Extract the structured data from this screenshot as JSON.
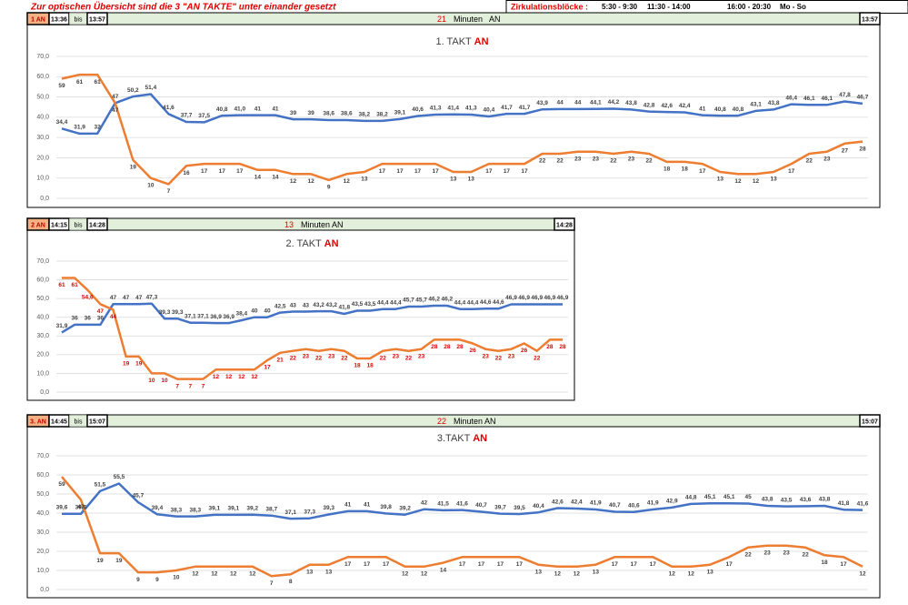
{
  "header": {
    "note": "Zur optischen Übersicht sind die 3 \"AN TAKTE\" unter einander gesetzt",
    "blocks_label": "Zirkulationsblöcke :",
    "blocks": [
      "5:30 - 9:30",
      "11:30 - 14:00",
      "16:00 - 20:30"
    ],
    "days": "Mo - So"
  },
  "chart_data": [
    {
      "type": "line",
      "title": "1. TAKT",
      "title_highlight": "AN",
      "block": {
        "label": "1 AN",
        "start": "13:36",
        "sep": "bis",
        "end": "13:57",
        "minutes": 21,
        "unit": "Minuten   AN",
        "right": "13:57"
      },
      "ylim": [
        0,
        70
      ],
      "yticks": [
        {
          "value": 0,
          "label": "0,0"
        },
        {
          "value": 10,
          "label": "10,0"
        },
        {
          "value": 20,
          "label": "20,0"
        },
        {
          "value": 30,
          "label": "30,0"
        },
        {
          "value": 40,
          "label": "40,0"
        },
        {
          "value": 50,
          "label": "50,0"
        },
        {
          "value": 60,
          "label": "60,0"
        },
        {
          "value": 70,
          "label": "70,0"
        }
      ],
      "grid": true,
      "series": [
        {
          "color": "#4472c4",
          "label_color": "#404040",
          "values": [
            34.4,
            31.9,
            32,
            47,
            50.2,
            51.4,
            41.6,
            37.7,
            37.5,
            40.8,
            41.0,
            41,
            41,
            39,
            39,
            38.6,
            38.6,
            38.2,
            38.2,
            39.1,
            40.6,
            41.3,
            41.4,
            41.3,
            40.4,
            41.7,
            41.7,
            43.9,
            44,
            44,
            44.1,
            44.2,
            43.8,
            42.8,
            42.6,
            42.4,
            41,
            40.8,
            40.8,
            43.1,
            43.8,
            46.4,
            46.1,
            46.1,
            47.8,
            46.7
          ],
          "value_labels": [
            "34,4",
            "31,9",
            "32",
            "47",
            "50,2",
            "51,4",
            "41,6",
            "37,7",
            "37,5",
            "40,8",
            "41,0",
            "41",
            "41",
            "39",
            "39",
            "38,6",
            "38,6",
            "38,2",
            "38,2",
            "39,1",
            "40,6",
            "41,3",
            "41,4",
            "41,3",
            "40,4",
            "41,7",
            "41,7",
            "43,9",
            "44",
            "44",
            "44,1",
            "44,2",
            "43,8",
            "42,8",
            "42,6",
            "42,4",
            "41",
            "40,8",
            "40,8",
            "43,1",
            "43,8",
            "46,4",
            "46,1",
            "46,1",
            "47,8",
            "46,7"
          ]
        },
        {
          "color": "#ed7d31",
          "label_color": "#404040",
          "values": [
            59,
            61,
            61,
            47,
            19,
            10,
            7,
            16,
            17,
            17,
            17,
            14,
            14,
            12,
            12,
            9,
            12,
            13,
            17,
            17,
            17,
            17,
            13,
            13,
            17,
            17,
            17,
            22,
            22,
            23,
            23,
            22,
            23,
            22,
            18,
            18,
            17,
            13,
            12,
            12,
            13,
            17,
            22,
            23,
            27,
            28
          ]
        }
      ]
    },
    {
      "type": "line",
      "title": "2. TAKT",
      "title_highlight": "AN",
      "block": {
        "label": "2 AN",
        "start": "14:15",
        "sep": "bis",
        "end": "14:28",
        "minutes": 13,
        "unit": "Minuten AN",
        "right": "14:28"
      },
      "ylim": [
        0,
        70
      ],
      "yticks": [
        {
          "value": 0,
          "label": "0,0"
        },
        {
          "value": 10,
          "label": "10,0"
        },
        {
          "value": 20,
          "label": "20,0"
        },
        {
          "value": 30,
          "label": "30,0"
        },
        {
          "value": 40,
          "label": "40,0"
        },
        {
          "value": 50,
          "label": "50,0"
        },
        {
          "value": 60,
          "label": "60,0"
        },
        {
          "value": 70,
          "label": "70,0"
        }
      ],
      "grid": true,
      "series": [
        {
          "color": "#4472c4",
          "label_color": "#404040",
          "values": [
            31.9,
            36,
            36,
            36,
            47,
            47,
            47,
            47.3,
            39.3,
            39.3,
            37.1,
            37.1,
            36.9,
            36.9,
            38.4,
            40,
            40,
            42.5,
            43,
            43,
            43.2,
            43.2,
            41.8,
            43.5,
            43.5,
            44.4,
            44.4,
            45.7,
            45.7,
            46.2,
            46.2,
            44.4,
            44.4,
            44.6,
            44.6,
            46.9,
            46.9,
            46.9,
            46.9,
            46.9
          ],
          "value_labels": [
            "31,9",
            "36",
            "36",
            "36",
            "47",
            "47",
            "47",
            "47,3",
            "39,3",
            "39,3",
            "37,1",
            "37,1",
            "36,9",
            "36,9",
            "38,4",
            "40",
            "40",
            "42,5",
            "43",
            "43",
            "43,2",
            "43,2",
            "41,8",
            "43,5",
            "43,5",
            "44,4",
            "44,4",
            "45,7",
            "45,7",
            "46,2",
            "46,2",
            "44,4",
            "44,4",
            "44,6",
            "44,6",
            "46,9",
            "46,9",
            "46,9",
            "46,9",
            "46,9"
          ]
        },
        {
          "color": "#ed7d31",
          "label_color": "#e00000",
          "values": [
            61,
            61,
            54.6,
            47,
            44,
            19,
            19,
            10,
            10,
            7,
            7,
            7,
            12,
            12,
            12,
            12,
            17,
            21,
            22,
            23,
            22,
            23,
            22,
            18,
            18,
            22,
            23,
            22,
            23,
            28,
            28,
            28,
            26,
            23,
            22,
            23,
            26,
            22,
            28,
            28
          ],
          "value_labels": [
            "61",
            "61",
            "54,6",
            "47",
            "44",
            "19",
            "19",
            "10",
            "10",
            "7",
            "7",
            "7",
            "12",
            "12",
            "12",
            "12",
            "17",
            "21",
            "22",
            "23",
            "22",
            "23",
            "22",
            "18",
            "18",
            "22",
            "23",
            "22",
            "23",
            "28",
            "28",
            "28",
            "26",
            "23",
            "22",
            "23",
            "26",
            "22",
            "28",
            "28"
          ]
        }
      ]
    },
    {
      "type": "line",
      "title": "3.TAKT",
      "title_highlight": "AN",
      "block": {
        "label": "3. AN",
        "start": "14:45",
        "sep": "bis",
        "end": "15:07",
        "minutes": 22,
        "unit": "Minuten AN",
        "right": "15:07"
      },
      "ylim": [
        0,
        70
      ],
      "yticks": [
        {
          "value": 0,
          "label": "0,0"
        },
        {
          "value": 10,
          "label": "10,0"
        },
        {
          "value": 20,
          "label": "20,0"
        },
        {
          "value": 30,
          "label": "30,0"
        },
        {
          "value": 40,
          "label": "40,0"
        },
        {
          "value": 50,
          "label": "50,0"
        },
        {
          "value": 60,
          "label": "60,0"
        },
        {
          "value": 70,
          "label": "70,0"
        }
      ],
      "grid": true,
      "series": [
        {
          "color": "#4472c4",
          "label_color": "#404040",
          "values": [
            39.6,
            39.6,
            51.5,
            55.5,
            45.7,
            39.4,
            38.3,
            38.3,
            39.1,
            39.1,
            39.2,
            38.7,
            37.1,
            37.3,
            39.3,
            41,
            41,
            39.8,
            39.2,
            42,
            41.5,
            41.6,
            40.7,
            39.7,
            39.5,
            40.4,
            42.6,
            42.4,
            41.9,
            40.7,
            40.6,
            41.9,
            42.9,
            44.8,
            45.1,
            45.1,
            45,
            43.8,
            43.5,
            43.6,
            43.8,
            41.8,
            41.6
          ],
          "value_labels": [
            "39,6",
            "39,6",
            "51,5",
            "55,5",
            "45,7",
            "39,4",
            "38,3",
            "38,3",
            "39,1",
            "39,1",
            "39,2",
            "38,7",
            "37,1",
            "37,3",
            "39,3",
            "41",
            "41",
            "39,8",
            "39,2",
            "42",
            "41,5",
            "41,6",
            "40,7",
            "39,7",
            "39,5",
            "40,4",
            "42,6",
            "42,4",
            "41,9",
            "40,7",
            "40,6",
            "41,9",
            "42,9",
            "44,8",
            "45,1",
            "45,1",
            "45",
            "43,8",
            "43,5",
            "43,6",
            "43,8",
            "41,8",
            "41,6"
          ]
        },
        {
          "color": "#ed7d31",
          "label_color": "#404040",
          "values": [
            59,
            47,
            19,
            19,
            9,
            9,
            10,
            12,
            12,
            12,
            12,
            7,
            8,
            13,
            13,
            17,
            17,
            17,
            12,
            12,
            14,
            17,
            17,
            17,
            17,
            13,
            12,
            12,
            13,
            17,
            17,
            17,
            12,
            12,
            13,
            17,
            22,
            23,
            23,
            22,
            18,
            17,
            12
          ]
        }
      ]
    }
  ]
}
